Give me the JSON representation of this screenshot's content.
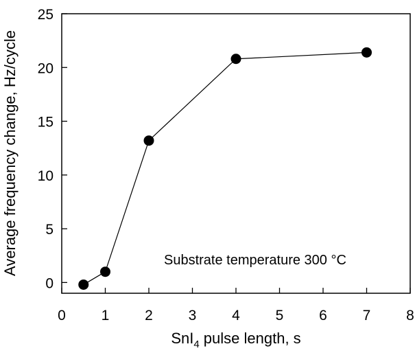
{
  "chart_data": {
    "type": "scatter",
    "title": "",
    "xlabel_main": "SnI",
    "xlabel_sub": "4",
    "xlabel_rest": " pulse length, s",
    "ylabel": "Average frequency change, Hz/cycle",
    "annotation": "Substrate temperature 300 °C",
    "xlim": [
      0,
      8
    ],
    "ylim": [
      -1,
      25
    ],
    "xticks": [
      0,
      1,
      2,
      3,
      4,
      5,
      6,
      7,
      8
    ],
    "yticks": [
      0,
      5,
      10,
      15,
      20,
      25
    ],
    "tick_labels_x": [
      "0",
      "1",
      "2",
      "3",
      "4",
      "5",
      "6",
      "7",
      "8"
    ],
    "tick_labels_y": [
      "0",
      "5",
      "10",
      "15",
      "20",
      "25"
    ],
    "grid": false,
    "legend": "none",
    "series": [
      {
        "name": "frequency change",
        "marker": "filled-circle",
        "line": "solid",
        "color": "#000000",
        "x": [
          0.5,
          1,
          2,
          4,
          7
        ],
        "y": [
          -0.2,
          1.0,
          13.2,
          20.8,
          21.4
        ]
      }
    ]
  }
}
